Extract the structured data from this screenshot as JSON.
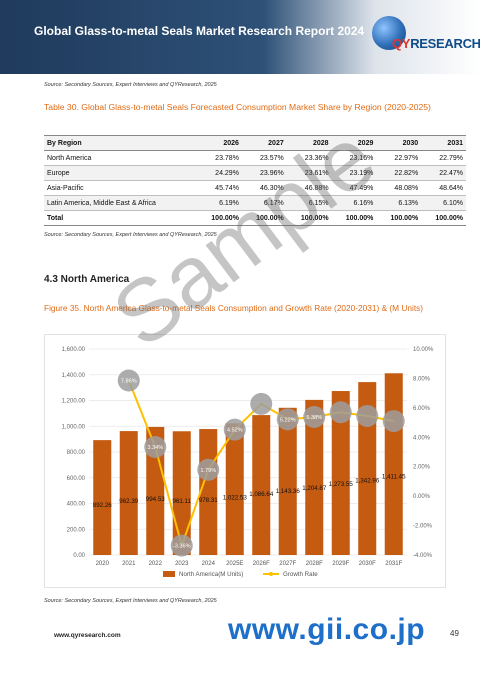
{
  "header": {
    "title": "Global Glass-to-metal Seals Market Research Report 2024",
    "logo_prefix": "QY",
    "logo_suffix": "RESEARCH"
  },
  "sources": {
    "top": "Source: Secondary Sources, Expert Interviews and QYResearch, 2025",
    "table": "Source: Secondary Sources, Expert Interviews and QYResearch, 2025",
    "chart": "Source: Secondary Sources, Expert Interviews and QYResearch, 2025"
  },
  "table30": {
    "title": "Table 30.   Global Glass-to-metal Seals Forecasted Consumption Market Share by Region (2020-2025)",
    "header": [
      "By Region",
      "2026",
      "2027",
      "2028",
      "2029",
      "2030",
      "2031"
    ],
    "rows": [
      [
        "North America",
        "23.78%",
        "23.57%",
        "23.36%",
        "23.16%",
        "22.97%",
        "22.79%"
      ],
      [
        "Europe",
        "24.29%",
        "23.96%",
        "23.61%",
        "23.19%",
        "22.82%",
        "22.47%"
      ],
      [
        "Asia-Pacific",
        "45.74%",
        "46.30%",
        "46.88%",
        "47.49%",
        "48.08%",
        "48.64%"
      ],
      [
        "Latin America, Middle East & Africa",
        "6.19%",
        "6.17%",
        "6.15%",
        "6.16%",
        "6.13%",
        "6.10%"
      ],
      [
        "Total",
        "100.00%",
        "100.00%",
        "100.00%",
        "100.00%",
        "100.00%",
        "100.00%"
      ]
    ]
  },
  "section": {
    "heading": "4.3   North America"
  },
  "figure35": {
    "title": "Figure 35.   North America Glass-to-metal Seals Consumption and Growth Rate (2020-2031) & (M Units)"
  },
  "chart_data": {
    "type": "bar",
    "categories": [
      "2020",
      "2021",
      "2022",
      "2023",
      "2024",
      "2025E",
      "2026F",
      "2027F",
      "2028F",
      "2029F",
      "2030F",
      "2031F"
    ],
    "series": [
      {
        "name": "North America(M Units)",
        "type": "bar",
        "values": [
          892.26,
          962.39,
          994.53,
          961.11,
          978.31,
          1022.53,
          1086.64,
          1143.36,
          1204.87,
          1273.55,
          1342.96,
          1411.45
        ],
        "labels": [
          "892.26",
          "962.39",
          "994.53",
          "961.11",
          "978.31",
          "1,022.53",
          "1,086.64",
          "1,143.36",
          "1,204.87",
          "1,273.55",
          "1,342.96",
          "1,411.45"
        ],
        "color": "#c55a11"
      },
      {
        "name": "Growth Rate",
        "type": "line",
        "values": [
          null,
          7.86,
          3.34,
          -3.36,
          1.79,
          4.52,
          6.27,
          5.22,
          5.38,
          5.7,
          5.45,
          5.1
        ],
        "labels": [
          "",
          "7.86%",
          "3.34%",
          "-3.36%",
          "1.79%",
          "4.52%",
          "",
          "5.22%",
          "5.38%",
          "",
          "",
          ""
        ],
        "color": "#ffc000"
      }
    ],
    "y_left": {
      "min": 0,
      "max": 1600,
      "ticks": [
        "0.00",
        "200.00",
        "400.00",
        "600.00",
        "800.00",
        "1,000.00",
        "1,200.00",
        "1,400.00",
        "1,600.00"
      ]
    },
    "y_right": {
      "min": -4,
      "max": 10,
      "ticks": [
        "-4.00%",
        "-2.00%",
        "0.00%",
        "2.00%",
        "4.00%",
        "6.00%",
        "8.00%",
        "10.00%"
      ]
    },
    "grid": true,
    "legend": "bottom"
  },
  "footer": {
    "url": "www.qyresearch.com",
    "page": "49"
  },
  "watermark": "Sample",
  "overlay_site": "www.gii.co.jp"
}
